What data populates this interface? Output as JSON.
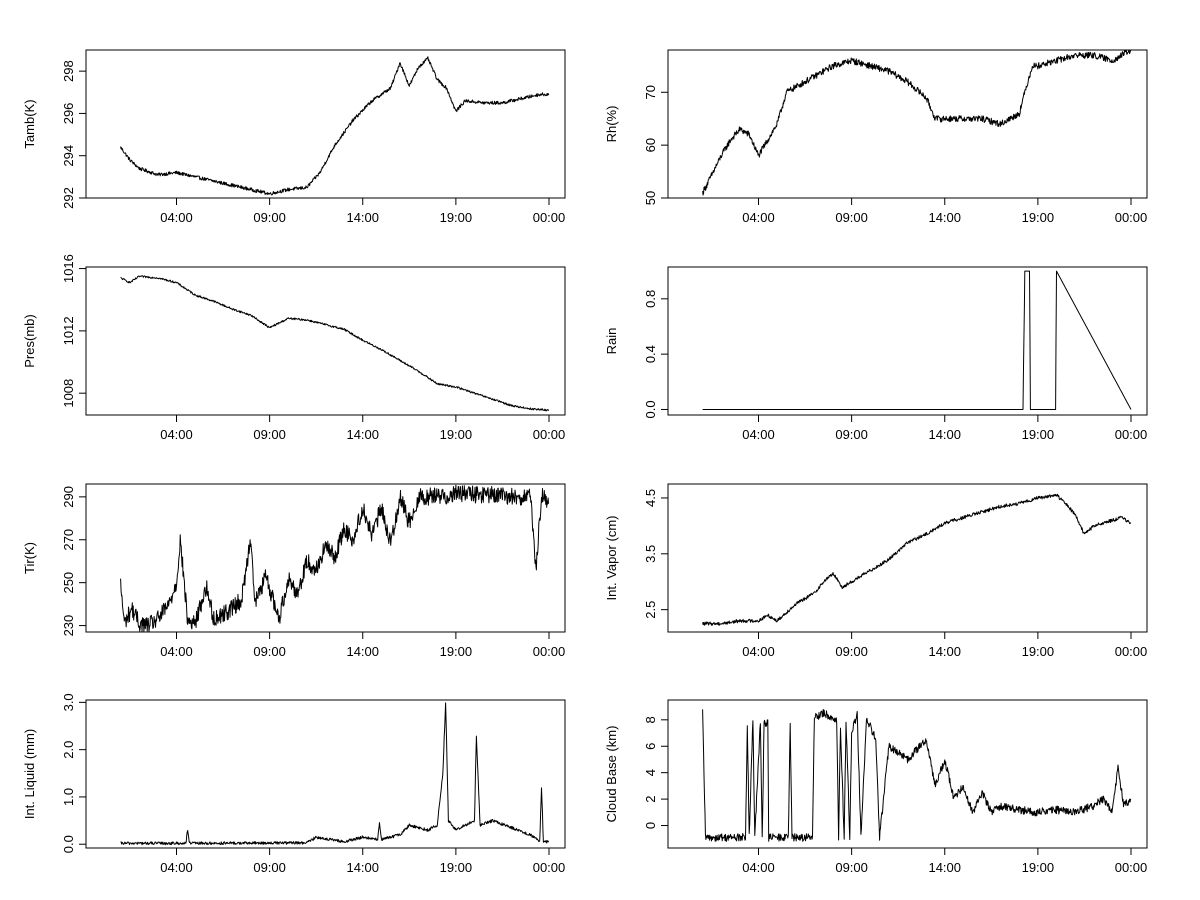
{
  "chart_data": [
    {
      "type": "line",
      "ylabel": "Tamb(K)",
      "xlabel": "",
      "x_unit": "hours since 00:00",
      "xlim": [
        0,
        24
      ],
      "ylim": [
        292,
        299
      ],
      "x_ticks": [
        4,
        9,
        14,
        19,
        24
      ],
      "x_tick_labels": [
        "04:00",
        "09:00",
        "14:00",
        "19:00",
        "00:00"
      ],
      "y_ticks": [
        292,
        294,
        296,
        298
      ],
      "y_tick_labels": [
        "292",
        "294",
        "296",
        "298"
      ],
      "grid": false,
      "noise": 0.08,
      "x": [
        1,
        1.5,
        2,
        3,
        4,
        5,
        6,
        7,
        8,
        9,
        10,
        11,
        11.7,
        12.5,
        13.5,
        14.5,
        15.5,
        16,
        16.5,
        17,
        17.5,
        18,
        18.5,
        19,
        19.5,
        20.5,
        21.5,
        22.5,
        23.5,
        24
      ],
      "values": [
        294.4,
        293.8,
        293.4,
        293.1,
        293.2,
        293.0,
        292.8,
        292.6,
        292.4,
        292.2,
        292.4,
        292.5,
        293.2,
        294.5,
        295.7,
        296.6,
        297.2,
        298.4,
        297.3,
        298.2,
        298.6,
        297.6,
        297.2,
        296.1,
        296.6,
        296.5,
        296.5,
        296.7,
        296.9,
        296.9
      ]
    },
    {
      "type": "line",
      "ylabel": "Rh(%)",
      "xlabel": "",
      "x_unit": "hours since 00:00",
      "xlim": [
        0,
        24
      ],
      "ylim": [
        50,
        78
      ],
      "x_ticks": [
        4,
        9,
        14,
        19,
        24
      ],
      "x_tick_labels": [
        "04:00",
        "09:00",
        "14:00",
        "19:00",
        "00:00"
      ],
      "y_ticks": [
        50,
        60,
        70
      ],
      "y_tick_labels": [
        "50",
        "60",
        "70"
      ],
      "grid": false,
      "noise": 0.6,
      "x": [
        1,
        1.3,
        2,
        2.5,
        3,
        3.5,
        4,
        4.5,
        5,
        5.5,
        6,
        7,
        8,
        9,
        10,
        11,
        12,
        13,
        13.5,
        14,
        15,
        16,
        17,
        18,
        18.3,
        18.7,
        19,
        20,
        21,
        22,
        23,
        24
      ],
      "values": [
        51,
        53,
        58,
        61,
        63,
        62,
        58,
        61,
        64,
        70,
        71,
        73,
        75,
        76,
        75,
        74,
        72,
        69,
        65,
        65,
        65,
        65,
        64,
        66,
        70,
        75,
        75,
        76,
        77,
        77,
        76,
        78
      ]
    },
    {
      "type": "line",
      "ylabel": "Pres(mb)",
      "xlabel": "",
      "x_unit": "hours since 00:00",
      "xlim": [
        0,
        24
      ],
      "ylim": [
        1006.6,
        1016.1
      ],
      "x_ticks": [
        4,
        9,
        14,
        19,
        24
      ],
      "x_tick_labels": [
        "04:00",
        "09:00",
        "14:00",
        "19:00",
        "00:00"
      ],
      "y_ticks": [
        1008,
        1012,
        1016
      ],
      "y_tick_labels": [
        "1008",
        "1012",
        "1016"
      ],
      "grid": false,
      "noise": 0.06,
      "x": [
        1,
        1.5,
        2,
        3,
        4,
        5,
        6,
        7,
        8,
        9,
        10,
        11,
        12,
        13,
        14,
        15,
        16,
        17,
        18,
        19,
        20,
        21,
        22,
        23,
        24
      ],
      "values": [
        1015.4,
        1015.1,
        1015.5,
        1015.4,
        1015.1,
        1014.3,
        1013.9,
        1013.4,
        1013.0,
        1012.2,
        1012.8,
        1012.7,
        1012.4,
        1012.1,
        1011.4,
        1010.8,
        1010.1,
        1009.4,
        1008.6,
        1008.4,
        1008.0,
        1007.6,
        1007.2,
        1007.0,
        1006.9
      ]
    },
    {
      "type": "line",
      "ylabel": "Rain",
      "xlabel": "",
      "x_unit": "hours since 00:00",
      "xlim": [
        0,
        24
      ],
      "ylim": [
        -0.04,
        1.03
      ],
      "x_ticks": [
        4,
        9,
        14,
        19,
        24
      ],
      "x_tick_labels": [
        "04:00",
        "09:00",
        "14:00",
        "19:00",
        "00:00"
      ],
      "y_ticks": [
        0.0,
        0.4,
        0.8
      ],
      "y_tick_labels": [
        "0.0",
        "0.4",
        "0.8"
      ],
      "grid": false,
      "noise": 0,
      "x": [
        1,
        18.2,
        18.3,
        18.55,
        18.6,
        19.95,
        20.0,
        24
      ],
      "values": [
        0,
        0,
        1,
        1,
        0,
        0,
        1,
        0
      ]
    },
    {
      "type": "line",
      "ylabel": "Tir(K)",
      "xlabel": "",
      "x_unit": "hours since 00:00",
      "xlim": [
        0,
        24
      ],
      "ylim": [
        227,
        296
      ],
      "x_ticks": [
        4,
        9,
        14,
        19,
        24
      ],
      "x_tick_labels": [
        "04:00",
        "09:00",
        "14:00",
        "19:00",
        "00:00"
      ],
      "y_ticks": [
        230,
        250,
        270,
        290
      ],
      "y_tick_labels": [
        "230",
        "250",
        "270",
        "290"
      ],
      "grid": false,
      "noise": 4.0,
      "x": [
        1,
        1.2,
        1.6,
        2,
        2.5,
        3,
        3.6,
        4,
        4.2,
        4.6,
        5,
        5.6,
        6,
        6.8,
        7.5,
        8,
        8.2,
        8.8,
        9.5,
        10,
        10.5,
        11,
        11.5,
        12,
        12.5,
        13,
        13.5,
        14,
        14.5,
        15,
        15.5,
        16,
        16.5,
        17,
        17.5,
        18,
        18.5,
        19,
        20,
        21,
        22,
        23,
        23.3,
        23.6,
        24
      ],
      "values": [
        249,
        231,
        238,
        231,
        230,
        233,
        240,
        250,
        270,
        232,
        231,
        248,
        233,
        237,
        242,
        272,
        240,
        253,
        233,
        252,
        245,
        260,
        256,
        267,
        262,
        275,
        270,
        285,
        272,
        285,
        268,
        290,
        278,
        290,
        290,
        291,
        290,
        292,
        291,
        291,
        290,
        290,
        256,
        291,
        287
      ]
    },
    {
      "type": "line",
      "ylabel": "Int. Vapor (cm)",
      "xlabel": "",
      "x_unit": "hours since 00:00",
      "xlim": [
        0,
        24
      ],
      "ylim": [
        2.1,
        4.75
      ],
      "x_ticks": [
        4,
        9,
        14,
        19,
        24
      ],
      "x_tick_labels": [
        "04:00",
        "09:00",
        "14:00",
        "19:00",
        "00:00"
      ],
      "y_ticks": [
        2.5,
        3.5,
        4.5
      ],
      "y_tick_labels": [
        "2.5",
        "3.5",
        "4.5"
      ],
      "grid": false,
      "noise": 0.03,
      "x": [
        1,
        2,
        3,
        4,
        4.5,
        5,
        6,
        7,
        7.5,
        8,
        8.5,
        9,
        10,
        11,
        12,
        13,
        14,
        15,
        16,
        17,
        18,
        19,
        20,
        20.5,
        21,
        21.5,
        22,
        23,
        23.5,
        24
      ],
      "values": [
        2.25,
        2.25,
        2.3,
        2.3,
        2.4,
        2.3,
        2.6,
        2.8,
        3.0,
        3.15,
        2.9,
        3.0,
        3.2,
        3.4,
        3.7,
        3.85,
        4.05,
        4.15,
        4.25,
        4.35,
        4.4,
        4.5,
        4.55,
        4.4,
        4.2,
        3.85,
        4.0,
        4.1,
        4.15,
        4.05
      ]
    },
    {
      "type": "line",
      "ylabel": "Int. Liquid (mm)",
      "xlabel": "",
      "x_unit": "hours since 00:00",
      "xlim": [
        0,
        24
      ],
      "ylim": [
        -0.08,
        3.05
      ],
      "x_ticks": [
        4,
        9,
        14,
        19,
        24
      ],
      "x_tick_labels": [
        "04:00",
        "09:00",
        "14:00",
        "19:00",
        "00:00"
      ],
      "y_ticks": [
        0.0,
        1.0,
        2.0,
        3.0
      ],
      "y_tick_labels": [
        "0.0",
        "1.0",
        "2.0",
        "3.0"
      ],
      "grid": false,
      "noise": 0.03,
      "x": [
        1,
        4.5,
        4.6,
        4.7,
        6,
        11,
        11.5,
        13,
        14,
        14.8,
        14.9,
        15,
        16,
        16.5,
        17.5,
        18,
        18.3,
        18.45,
        18.6,
        19,
        19.5,
        20,
        20.1,
        20.3,
        21,
        22,
        23,
        23.5,
        23.6,
        23.7,
        24
      ],
      "values": [
        0.02,
        0.02,
        0.3,
        0.02,
        0.02,
        0.03,
        0.15,
        0.05,
        0.15,
        0.1,
        0.45,
        0.1,
        0.2,
        0.4,
        0.3,
        0.4,
        1.5,
        3.0,
        0.5,
        0.3,
        0.4,
        0.5,
        2.3,
        0.4,
        0.5,
        0.35,
        0.2,
        0.05,
        1.2,
        0.05,
        0.05
      ]
    },
    {
      "type": "line",
      "ylabel": "Cloud Base (km)",
      "xlabel": "",
      "x_unit": "hours since 00:00",
      "xlim": [
        0,
        24
      ],
      "ylim": [
        -1.7,
        9.5
      ],
      "x_ticks": [
        4,
        9,
        14,
        19,
        24
      ],
      "x_tick_labels": [
        "04:00",
        "09:00",
        "14:00",
        "19:00",
        "00:00"
      ],
      "y_ticks": [
        0,
        2,
        4,
        6,
        8
      ],
      "y_tick_labels": [
        "0",
        "2",
        "4",
        "6",
        "8"
      ],
      "grid": false,
      "noise": 0.3,
      "x": [
        1,
        1.15,
        3.3,
        3.4,
        3.5,
        3.7,
        3.8,
        4.1,
        4.2,
        4.3,
        4.5,
        4.55,
        5.6,
        5.7,
        5.8,
        6.9,
        7.0,
        7.5,
        8.2,
        8.3,
        8.4,
        8.6,
        8.7,
        8.9,
        9.0,
        9.3,
        9.5,
        9.8,
        10,
        10.3,
        10.5,
        11,
        12,
        13,
        13.5,
        14,
        14.5,
        15,
        15.5,
        16,
        16.5,
        17,
        18,
        19,
        20,
        21,
        22,
        22.5,
        23,
        23.3,
        23.6,
        24
      ],
      "values": [
        8.5,
        -0.9,
        -0.9,
        7.5,
        -0.9,
        8.0,
        -0.9,
        7.8,
        -0.9,
        7.8,
        7.8,
        -0.9,
        -0.9,
        7.5,
        -0.9,
        -0.9,
        8.2,
        8.5,
        8.0,
        -0.9,
        7.5,
        -0.9,
        8.0,
        -0.9,
        7.0,
        8.5,
        -0.9,
        8.0,
        7.5,
        6.5,
        -0.9,
        6.0,
        5.0,
        6.5,
        3.0,
        5.0,
        2.0,
        3.0,
        1.0,
        2.5,
        1.0,
        1.5,
        1.2,
        1.0,
        1.2,
        1.0,
        1.5,
        2.0,
        1.0,
        4.5,
        1.5,
        2.0
      ]
    }
  ]
}
